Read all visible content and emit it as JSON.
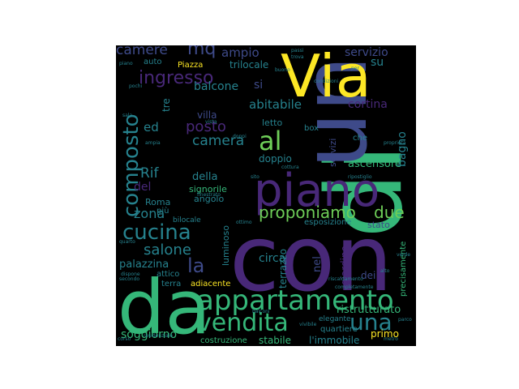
{
  "wordcloud": {
    "background": "#000000",
    "palette": {
      "purple": "#482878",
      "blue": "#3e4a89",
      "teal": "#26828e",
      "green": "#35b779",
      "lime": "#6ece58",
      "yellow": "#fde725"
    },
    "words": {
      "di": "di",
      "un": "un",
      "con": "con",
      "da": "da",
      "via": "Via",
      "piano": "piano",
      "appartamento": "appartamento",
      "vendita": "vendita",
      "una": "una",
      "cucina": "cucina",
      "proponiamo": "proponiamo",
      "due": "due",
      "composto": "composto",
      "al": "al",
      "camere": "camere",
      "mq": "mq",
      "ampio": "ampio",
      "trilocale": "trilocale",
      "servizio": "servizio",
      "ingresso": "ingresso",
      "abitabile": "abitabile",
      "si": "si",
      "balcone": "balcone",
      "cortina": "cortina",
      "posto": "posto",
      "camera": "camera",
      "letto": "letto",
      "villa": "villa",
      "ed": "ed",
      "rif": "Rif",
      "della": "della",
      "doppio": "doppio",
      "ascensore": "ascensore",
      "bagno": "bagno",
      "servizi": "servizi",
      "zona": "zona",
      "del": "del",
      "roma": "Roma",
      "signorile": "signorile",
      "angolo": "angolo",
      "salone": "salone",
      "la": "la",
      "palazzina": "palazzina",
      "luminoso": "luminoso",
      "circa": "circa",
      "terrazzo": "terrazzo",
      "nel": "nel",
      "giardino": "giardino",
      "dei": "dei",
      "soggiorno": "soggiorno",
      "costruzione": "costruzione",
      "stabile": "stabile",
      "limmobile": "l'immobile",
      "quartiere": "quartiere",
      "primo": "primo",
      "ristrutturato": "ristrutturato",
      "adiacente": "adiacente",
      "terra": "terra",
      "attico": "attico",
      "precisamente": "precisamente",
      "stato": "stato",
      "esposizione": "esposizione",
      "auto": "auto",
      "piazza": "Piazza",
      "pochi": "pochi",
      "piano_s": "piano",
      "vista": "vista",
      "proprieta": "proprietà",
      "box": "box",
      "che": "che",
      "ottimo": "ottimo",
      "residenziale": "residenziale",
      "elegante": "elegante",
      "tre": "tre",
      "per": "per",
      "su": "su",
      "trova": "trova",
      "passi": "passi",
      "doppi": "doppi",
      "buono": "buono",
      "condizioni": "condizioni",
      "ampia": "ampia",
      "dispone": "dispone",
      "riscaldamento": "riscaldamento",
      "cottura": "cottura",
      "ripostiglio": "ripostiglio",
      "vivibile": "vivibile",
      "parco": "parco",
      "metro": "metro",
      "finestrato": "finestrato",
      "completamente": "completamente",
      "piu": "più",
      "bilocale": "bilocale",
      "secondo": "secondo",
      "quarto": "quarto",
      "alto": "alto",
      "verde": "verde",
      "corso": "corso",
      "balconi": "balconi",
      "sito": "sito",
      "sala": "sala"
    }
  }
}
